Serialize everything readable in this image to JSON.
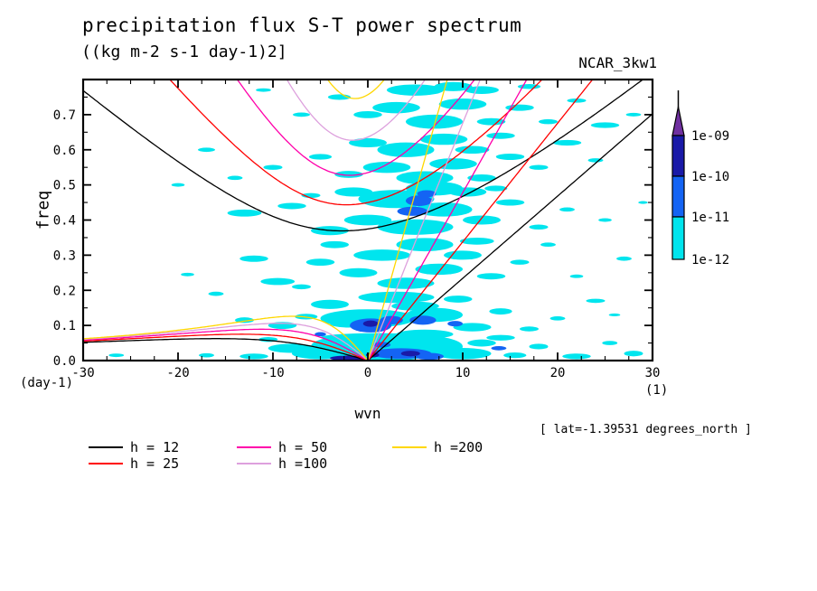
{
  "header": {
    "title": "precipitation flux S-T power spectrum",
    "subtitle": "((kg m-2 s-1 day-1)2]",
    "run_id": "NCAR_3kw1"
  },
  "chart_data": {
    "type": "heatmap",
    "description": "wavenumber-frequency power spectrum with shallow-water dispersion curve overlay",
    "title": "precipitation flux S-T power spectrum",
    "subtitle_units": "((kg m-2 s-1 day-1)2]",
    "annotation": "[ lat=-1.39531 degrees_north ]",
    "x": {
      "label": "wvn",
      "unit_label": "(1)",
      "range": [
        -30,
        30
      ],
      "major_tick_values": [
        -30,
        -20,
        -10,
        0,
        10,
        20,
        30
      ],
      "major_tick_labels": [
        "-30",
        "-20",
        "-10",
        "0",
        "10",
        "20",
        "30"
      ],
      "minor_step": 2.5
    },
    "y": {
      "label": "freq",
      "unit_label": "(day-1)",
      "range": [
        0,
        0.8
      ],
      "major_tick_values": [
        0.0,
        0.1,
        0.2,
        0.3,
        0.4,
        0.5,
        0.6,
        0.7
      ],
      "major_tick_labels": [
        "0.0",
        "0.1",
        "0.2",
        "0.3",
        "0.4",
        "0.5",
        "0.6",
        "0.7"
      ],
      "minor_step": 0.05
    },
    "colorbar": {
      "tick_labels": [
        "1e-09",
        "1e-10",
        "1e-11",
        "1e-12"
      ],
      "segment_colors_top_to_bottom": [
        "#7030A0",
        "#1A1AA8",
        "#1464F4",
        "#00E5EE"
      ],
      "overflow_arrow_color": "#7030A0"
    },
    "legend": {
      "entries": [
        {
          "label": "h = 12",
          "color": "#000000",
          "equivalent_depth_m": 12
        },
        {
          "label": "h = 25",
          "color": "#FF0000",
          "equivalent_depth_m": 25
        },
        {
          "label": "h = 50",
          "color": "#FF00AA",
          "equivalent_depth_m": 50
        },
        {
          "label": "h =100",
          "color": "#DDA0DD",
          "equivalent_depth_m": 100
        },
        {
          "label": "h =200",
          "color": "#FFD700",
          "equivalent_depth_m": 200
        }
      ]
    },
    "dispersion_curves": {
      "equivalent_depths_m": [
        12,
        25,
        50,
        100,
        200
      ],
      "colors": [
        "#000000",
        "#FF0000",
        "#FF00AA",
        "#DDA0DD",
        "#FFD700"
      ],
      "wave_types": [
        "kelvin",
        "equatorial_rossby_n1",
        "inertio_gravity_n1"
      ]
    },
    "power_levels": {
      "c": {
        "color": "#00E5EE",
        "range": "1e-12 to 1e-11"
      },
      "b": {
        "color": "#1464F4",
        "range": "1e-11 to 1e-10"
      },
      "n": {
        "color": "#1A1AA8",
        "range": "1e-10 to 1e-09"
      }
    },
    "blobs": [
      [
        -8,
        0.035,
        2.5,
        0.013,
        "c"
      ],
      [
        -5,
        0.02,
        3,
        0.016,
        "c"
      ],
      [
        -2,
        0.04,
        4,
        0.03,
        "c"
      ],
      [
        2,
        0.03,
        5,
        0.032,
        "c"
      ],
      [
        6,
        0.04,
        4,
        0.03,
        "c"
      ],
      [
        10,
        0.02,
        3,
        0.016,
        "c"
      ],
      [
        12,
        0.05,
        1.5,
        0.01,
        "c"
      ],
      [
        1,
        0.066,
        6,
        0.012,
        "c"
      ],
      [
        15.5,
        0.015,
        1.2,
        0.008,
        "c"
      ],
      [
        18,
        0.04,
        1,
        0.008,
        "c"
      ],
      [
        -12,
        0.012,
        1.5,
        0.008,
        "c"
      ],
      [
        -10.5,
        0.06,
        1,
        0.007,
        "c"
      ],
      [
        14,
        0.065,
        1.5,
        0.008,
        "c"
      ],
      [
        22,
        0.012,
        1.5,
        0.008,
        "c"
      ],
      [
        28,
        0.02,
        1,
        0.008,
        "c"
      ],
      [
        25.5,
        0.05,
        0.8,
        0.006,
        "c"
      ],
      [
        -17,
        0.015,
        0.8,
        0.006,
        "c"
      ],
      [
        -26.5,
        0.015,
        0.8,
        0.005,
        "c"
      ],
      [
        0,
        0.12,
        5,
        0.026,
        "c"
      ],
      [
        7,
        0.13,
        3,
        0.02,
        "c"
      ],
      [
        -4,
        0.16,
        2,
        0.013,
        "c"
      ],
      [
        3,
        0.18,
        4,
        0.016,
        "c"
      ],
      [
        -9,
        0.1,
        1.5,
        0.01,
        "c"
      ],
      [
        11,
        0.095,
        2,
        0.012,
        "c"
      ],
      [
        14,
        0.14,
        1.2,
        0.009,
        "c"
      ],
      [
        -13,
        0.115,
        1,
        0.008,
        "c"
      ],
      [
        5,
        0.155,
        2.5,
        0.013,
        "c"
      ],
      [
        9.5,
        0.175,
        1.5,
        0.01,
        "c"
      ],
      [
        17,
        0.09,
        1,
        0.007,
        "c"
      ],
      [
        -6.5,
        0.125,
        1.2,
        0.008,
        "c"
      ],
      [
        20,
        0.12,
        0.8,
        0.006,
        "c"
      ],
      [
        -2,
        0.105,
        2,
        0.011,
        "c"
      ],
      [
        -16,
        0.19,
        0.8,
        0.006,
        "c"
      ],
      [
        24,
        0.17,
        1,
        0.006,
        "c"
      ],
      [
        6,
        0.075,
        3,
        0.013,
        "c"
      ],
      [
        26,
        0.13,
        0.6,
        0.004,
        "c"
      ],
      [
        4,
        0.22,
        3,
        0.016,
        "c"
      ],
      [
        -1,
        0.25,
        2,
        0.013,
        "c"
      ],
      [
        7.5,
        0.26,
        2.5,
        0.016,
        "c"
      ],
      [
        -5,
        0.28,
        1.5,
        0.01,
        "c"
      ],
      [
        -9.5,
        0.225,
        1.8,
        0.01,
        "c"
      ],
      [
        1.5,
        0.3,
        3,
        0.016,
        "c"
      ],
      [
        6,
        0.33,
        3,
        0.019,
        "c"
      ],
      [
        -12,
        0.29,
        1.5,
        0.009,
        "c"
      ],
      [
        10,
        0.3,
        2,
        0.013,
        "c"
      ],
      [
        13,
        0.24,
        1.5,
        0.009,
        "c"
      ],
      [
        -3.5,
        0.33,
        1.5,
        0.01,
        "c"
      ],
      [
        16,
        0.28,
        1,
        0.007,
        "c"
      ],
      [
        11.5,
        0.34,
        1.8,
        0.01,
        "c"
      ],
      [
        27,
        0.29,
        0.8,
        0.006,
        "c"
      ],
      [
        -7,
        0.21,
        1,
        0.007,
        "c"
      ],
      [
        19,
        0.33,
        0.8,
        0.006,
        "c"
      ],
      [
        22,
        0.24,
        0.7,
        0.005,
        "c"
      ],
      [
        -19,
        0.245,
        0.7,
        0.005,
        "c"
      ],
      [
        5,
        0.38,
        4,
        0.022,
        "c"
      ],
      [
        0,
        0.4,
        2.5,
        0.015,
        "c"
      ],
      [
        8,
        0.43,
        3,
        0.02,
        "c"
      ],
      [
        -4,
        0.37,
        2,
        0.013,
        "c"
      ],
      [
        3,
        0.46,
        4,
        0.026,
        "c"
      ],
      [
        7,
        0.49,
        3,
        0.02,
        "c"
      ],
      [
        -8,
        0.44,
        1.5,
        0.009,
        "c"
      ],
      [
        -13,
        0.42,
        1.8,
        0.01,
        "c"
      ],
      [
        12,
        0.4,
        2,
        0.013,
        "c"
      ],
      [
        15,
        0.45,
        1.5,
        0.009,
        "c"
      ],
      [
        -1.5,
        0.48,
        2,
        0.013,
        "c"
      ],
      [
        10.5,
        0.48,
        2,
        0.013,
        "c"
      ],
      [
        18,
        0.38,
        1,
        0.007,
        "c"
      ],
      [
        -6,
        0.47,
        1,
        0.007,
        "c"
      ],
      [
        21,
        0.43,
        0.8,
        0.006,
        "c"
      ],
      [
        25,
        0.4,
        0.7,
        0.005,
        "c"
      ],
      [
        13.5,
        0.49,
        1.2,
        0.008,
        "c"
      ],
      [
        29,
        0.45,
        0.5,
        0.004,
        "c"
      ],
      [
        6,
        0.52,
        3,
        0.019,
        "c"
      ],
      [
        2,
        0.55,
        2.5,
        0.016,
        "c"
      ],
      [
        9,
        0.56,
        2.5,
        0.016,
        "c"
      ],
      [
        -2,
        0.53,
        1.5,
        0.01,
        "c"
      ],
      [
        12,
        0.52,
        1.5,
        0.01,
        "c"
      ],
      [
        4,
        0.6,
        3,
        0.021,
        "c"
      ],
      [
        8,
        0.63,
        2.5,
        0.016,
        "c"
      ],
      [
        -5,
        0.58,
        1.2,
        0.008,
        "c"
      ],
      [
        -10,
        0.55,
        1,
        0.007,
        "c"
      ],
      [
        15,
        0.58,
        1.5,
        0.009,
        "c"
      ],
      [
        0,
        0.62,
        2,
        0.013,
        "c"
      ],
      [
        11,
        0.6,
        1.8,
        0.011,
        "c"
      ],
      [
        18,
        0.55,
        1,
        0.007,
        "c"
      ],
      [
        -14,
        0.52,
        0.8,
        0.006,
        "c"
      ],
      [
        21,
        0.62,
        1.5,
        0.008,
        "c"
      ],
      [
        24,
        0.57,
        0.8,
        0.006,
        "c"
      ],
      [
        -17,
        0.6,
        0.9,
        0.006,
        "c"
      ],
      [
        14,
        0.64,
        1.5,
        0.009,
        "c"
      ],
      [
        -20,
        0.5,
        0.7,
        0.005,
        "c"
      ],
      [
        7,
        0.68,
        3,
        0.02,
        "c"
      ],
      [
        3,
        0.72,
        2.5,
        0.016,
        "c"
      ],
      [
        10,
        0.73,
        2.5,
        0.016,
        "c"
      ],
      [
        0,
        0.7,
        1.5,
        0.01,
        "c"
      ],
      [
        13,
        0.68,
        1.5,
        0.01,
        "c"
      ],
      [
        5,
        0.77,
        3,
        0.016,
        "c"
      ],
      [
        9,
        0.78,
        2,
        0.013,
        "c"
      ],
      [
        -3,
        0.75,
        1.2,
        0.008,
        "c"
      ],
      [
        16,
        0.72,
        1.5,
        0.009,
        "c"
      ],
      [
        19,
        0.68,
        1,
        0.007,
        "c"
      ],
      [
        12,
        0.77,
        1.8,
        0.011,
        "c"
      ],
      [
        25,
        0.67,
        1.5,
        0.008,
        "c"
      ],
      [
        -7,
        0.7,
        0.9,
        0.006,
        "c"
      ],
      [
        22,
        0.74,
        1,
        0.006,
        "c"
      ],
      [
        28,
        0.7,
        0.8,
        0.005,
        "c"
      ],
      [
        17,
        0.78,
        1.2,
        0.007,
        "c"
      ],
      [
        -11,
        0.77,
        0.8,
        0.005,
        "c"
      ],
      [
        3.5,
        0.02,
        3.2,
        0.015,
        "b"
      ],
      [
        6.5,
        0.012,
        1.5,
        0.01,
        "b"
      ],
      [
        0.3,
        0.1,
        2.2,
        0.02,
        "b"
      ],
      [
        5.8,
        0.115,
        1.4,
        0.013,
        "b"
      ],
      [
        1.5,
        0.045,
        0.9,
        0.008,
        "b"
      ],
      [
        13.8,
        0.035,
        0.8,
        0.006,
        "b"
      ],
      [
        5.4,
        0.455,
        1.4,
        0.015,
        "b"
      ],
      [
        4.7,
        0.425,
        1.6,
        0.013,
        "b"
      ],
      [
        9.2,
        0.105,
        0.8,
        0.008,
        "b"
      ],
      [
        6.2,
        0.475,
        1.0,
        0.01,
        "b"
      ],
      [
        -5,
        0.075,
        0.6,
        0.006,
        "b"
      ],
      [
        2.5,
        0.115,
        1.2,
        0.012,
        "b"
      ],
      [
        -2.2,
        0.007,
        1.8,
        0.007,
        "n"
      ],
      [
        0.5,
        0.016,
        0.7,
        0.007,
        "n"
      ],
      [
        0.3,
        0.105,
        0.8,
        0.009,
        "n"
      ],
      [
        4.5,
        0.02,
        1.0,
        0.008,
        "n"
      ]
    ]
  }
}
